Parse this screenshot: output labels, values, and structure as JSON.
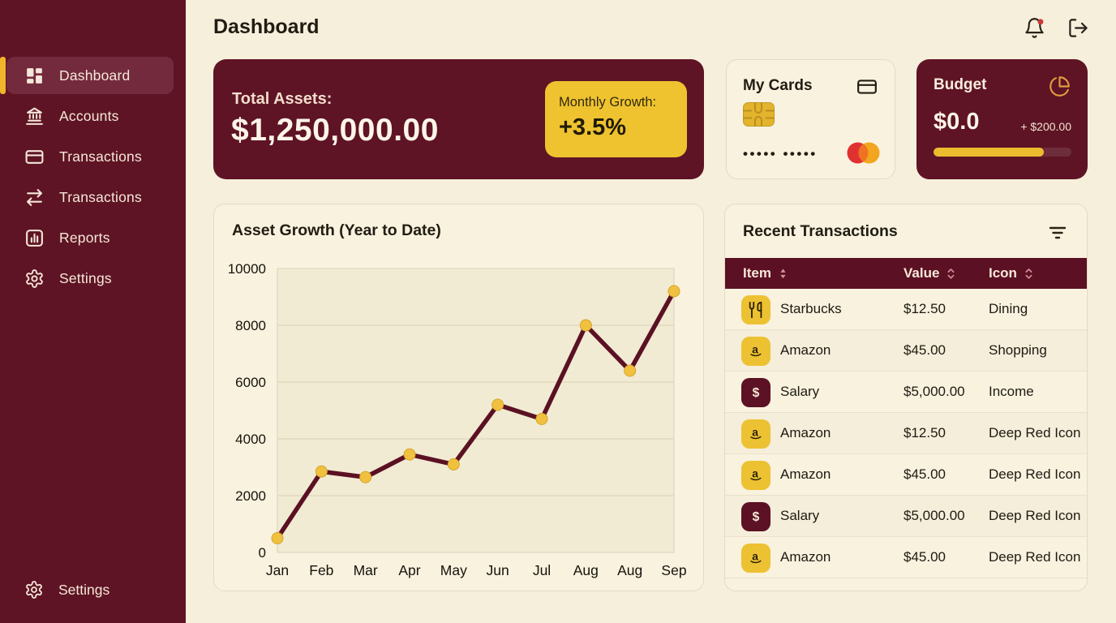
{
  "header": {
    "title": "Dashboard",
    "notification_dot": true
  },
  "sidebar": {
    "items": [
      {
        "label": "Dashboard",
        "icon": "dashboard-grid",
        "active": true
      },
      {
        "label": "Accounts",
        "icon": "bank",
        "active": false
      },
      {
        "label": "Transactions",
        "icon": "credit-card",
        "active": false
      },
      {
        "label": "Transactions",
        "icon": "transfer-arrows",
        "active": false
      },
      {
        "label": "Reports",
        "icon": "bar-chart",
        "active": false
      },
      {
        "label": "Settings",
        "icon": "gear",
        "active": false
      }
    ],
    "footer_item": {
      "label": "Settings",
      "icon": "gear"
    }
  },
  "cards": {
    "total_assets": {
      "label": "Total Assets:",
      "value": "$1,250,000.00",
      "growth_label": "Monthly Growth:",
      "growth_value": "+3.5%"
    },
    "my_cards": {
      "title": "My Cards",
      "masked_number": "••••• •••••"
    },
    "budget": {
      "title": "Budget",
      "value": "$0.0",
      "extra": "+ $200.00",
      "progress_percent": 80
    }
  },
  "chart_data": {
    "type": "line",
    "title": "Asset Growth (Year to Date)",
    "x": [
      "Jan",
      "Feb",
      "Mar",
      "Apr",
      "May",
      "Jun",
      "Jul",
      "Aug",
      "Aug",
      "Sep"
    ],
    "values": [
      500,
      2850,
      2650,
      3450,
      3100,
      5200,
      4700,
      8000,
      6400,
      9200
    ],
    "xlabel": "",
    "ylabel": "",
    "ylim": [
      0,
      10000
    ],
    "yticks": [
      0,
      2000,
      4000,
      6000,
      8000,
      10000
    ],
    "grid": true,
    "legend": false,
    "line_color": "#5b1123",
    "marker_color": "#f0c13f"
  },
  "transactions": {
    "title": "Recent Transactions",
    "columns": [
      {
        "label": "Item",
        "sort": "active"
      },
      {
        "label": "Value",
        "sort": "inactive"
      },
      {
        "label": "Icon",
        "sort": "inactive"
      }
    ],
    "rows": [
      {
        "icon": "dining",
        "icon_bg": "#edc232",
        "item": "Starbucks",
        "value": "$12.50",
        "category": "Dining"
      },
      {
        "icon": "amazon",
        "icon_bg": "#edc232",
        "item": "Amazon",
        "value": "$45.00",
        "category": "Shopping"
      },
      {
        "icon": "dollar",
        "icon_bg": "#5c1124",
        "item": "Salary",
        "value": "$5,000.00",
        "category": "Income"
      },
      {
        "icon": "amazon",
        "icon_bg": "#edc232",
        "item": "Amazon",
        "value": "$12.50",
        "category": "Deep Red Icon"
      },
      {
        "icon": "amazon",
        "icon_bg": "#edc232",
        "item": "Amazon",
        "value": "$45.00",
        "category": "Deep Red Icon"
      },
      {
        "icon": "dollar",
        "icon_bg": "#5c1124",
        "item": "Salary",
        "value": "$5,000.00",
        "category": "Deep Red Icon"
      },
      {
        "icon": "amazon",
        "icon_bg": "#edc232",
        "item": "Amazon",
        "value": "$45.00",
        "category": "Deep Red Icon"
      }
    ]
  },
  "colors": {
    "maroon": "#5e1425",
    "accent_yellow": "#eec32f",
    "background_cream": "#f6efdb",
    "card_cream": "#f8f2df",
    "table_header_maroon": "#5c1023",
    "mastercard_red": "#e03131",
    "mastercard_orange": "#f2a61f",
    "notification_red": "#cb3a34"
  }
}
